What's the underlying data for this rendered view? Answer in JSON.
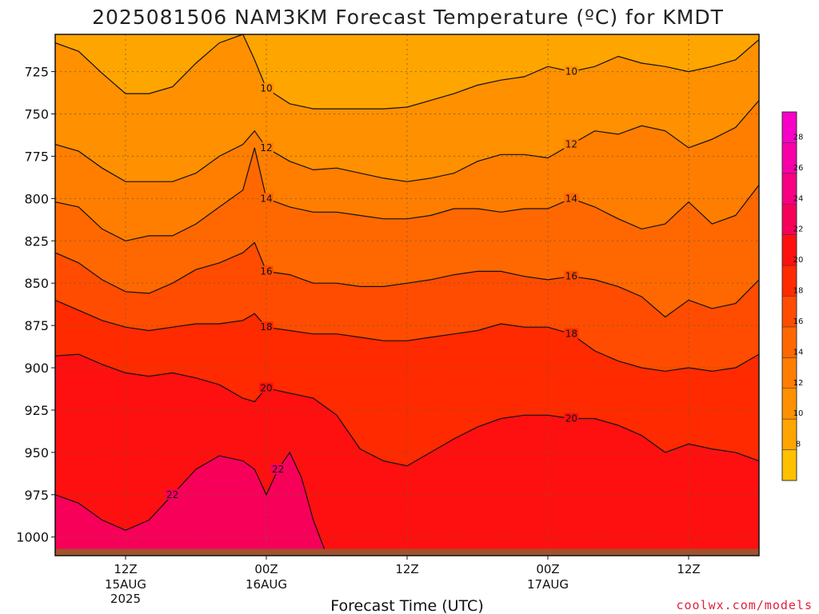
{
  "chart_data": {
    "type": "heatmap",
    "title": "2025081506 NAM3KM Forecast Temperature (ºC) for KMDT",
    "xlabel": "Forecast Time (UTC)",
    "ylabel": "",
    "credit": "coolwx.com/models",
    "y_axis": {
      "type": "pressure",
      "ticks": [
        725,
        750,
        775,
        800,
        825,
        850,
        875,
        900,
        925,
        950,
        975,
        1000
      ],
      "range": [
        1011,
        703
      ],
      "inverted": true
    },
    "x_axis": {
      "ticks": [
        {
          "hour": 6,
          "label": "12Z",
          "sublabels": [
            "15AUG",
            "2025"
          ]
        },
        {
          "hour": 18,
          "label": "00Z",
          "sublabels": [
            "16AUG"
          ]
        },
        {
          "hour": 30,
          "label": "12Z",
          "sublabels": []
        },
        {
          "hour": 42,
          "label": "00Z",
          "sublabels": [
            "17AUG"
          ]
        },
        {
          "hour": 54,
          "label": "12Z",
          "sublabels": []
        }
      ],
      "range_hours": [
        0,
        60
      ],
      "grid": true
    },
    "colorbar": {
      "labels": [
        8,
        10,
        12,
        14,
        16,
        18,
        20,
        22,
        24,
        26,
        28
      ],
      "bins": [
        {
          "min": 6,
          "max": 8,
          "color": "#ffc000"
        },
        {
          "min": 8,
          "max": 10,
          "color": "#ffa500"
        },
        {
          "min": 10,
          "max": 12,
          "color": "#ff9000"
        },
        {
          "min": 12,
          "max": 14,
          "color": "#ff7e00"
        },
        {
          "min": 14,
          "max": 16,
          "color": "#ff6800"
        },
        {
          "min": 16,
          "max": 18,
          "color": "#ff4c00"
        },
        {
          "min": 18,
          "max": 20,
          "color": "#ff2a00"
        },
        {
          "min": 20,
          "max": 22,
          "color": "#ff1010"
        },
        {
          "min": 22,
          "max": 24,
          "color": "#f7005a"
        },
        {
          "min": 24,
          "max": 26,
          "color": "#f70082"
        },
        {
          "min": 26,
          "max": 28,
          "color": "#f700a8"
        },
        {
          "min": 28,
          "max": 30,
          "color": "#f700c8"
        }
      ]
    },
    "contours": [
      {
        "level": 10,
        "label": "10",
        "pressure_by_hour": [
          [
            0,
            708
          ],
          [
            2,
            713
          ],
          [
            4,
            726
          ],
          [
            6,
            738
          ],
          [
            8,
            738
          ],
          [
            10,
            734
          ],
          [
            12,
            720
          ],
          [
            14,
            708
          ],
          [
            16,
            703
          ],
          [
            17,
            718
          ],
          [
            18,
            735
          ],
          [
            20,
            744
          ],
          [
            22,
            747
          ],
          [
            24,
            747
          ],
          [
            26,
            747
          ],
          [
            28,
            747
          ],
          [
            30,
            746
          ],
          [
            32,
            742
          ],
          [
            34,
            738
          ],
          [
            36,
            733
          ],
          [
            38,
            730
          ],
          [
            40,
            728
          ],
          [
            42,
            722
          ],
          [
            44,
            725
          ],
          [
            46,
            722
          ],
          [
            48,
            716
          ],
          [
            50,
            720
          ],
          [
            52,
            722
          ],
          [
            54,
            725
          ],
          [
            56,
            722
          ],
          [
            58,
            718
          ],
          [
            60,
            706
          ]
        ]
      },
      {
        "level": 12,
        "label": "12",
        "pressure_by_hour": [
          [
            0,
            768
          ],
          [
            2,
            772
          ],
          [
            4,
            782
          ],
          [
            6,
            790
          ],
          [
            8,
            790
          ],
          [
            10,
            790
          ],
          [
            12,
            785
          ],
          [
            14,
            775
          ],
          [
            16,
            768
          ],
          [
            17,
            760
          ],
          [
            18,
            770
          ],
          [
            20,
            778
          ],
          [
            22,
            783
          ],
          [
            24,
            782
          ],
          [
            26,
            785
          ],
          [
            28,
            788
          ],
          [
            30,
            790
          ],
          [
            32,
            788
          ],
          [
            34,
            785
          ],
          [
            36,
            778
          ],
          [
            38,
            774
          ],
          [
            40,
            774
          ],
          [
            42,
            776
          ],
          [
            44,
            768
          ],
          [
            46,
            760
          ],
          [
            48,
            762
          ],
          [
            50,
            757
          ],
          [
            52,
            760
          ],
          [
            54,
            770
          ],
          [
            56,
            765
          ],
          [
            58,
            758
          ],
          [
            60,
            742
          ]
        ]
      },
      {
        "level": 14,
        "label": "14",
        "pressure_by_hour": [
          [
            0,
            802
          ],
          [
            2,
            805
          ],
          [
            4,
            818
          ],
          [
            6,
            825
          ],
          [
            8,
            822
          ],
          [
            10,
            822
          ],
          [
            12,
            815
          ],
          [
            14,
            805
          ],
          [
            16,
            795
          ],
          [
            17,
            770
          ],
          [
            18,
            800
          ],
          [
            20,
            805
          ],
          [
            22,
            808
          ],
          [
            24,
            808
          ],
          [
            26,
            810
          ],
          [
            28,
            812
          ],
          [
            30,
            812
          ],
          [
            32,
            810
          ],
          [
            34,
            806
          ],
          [
            36,
            806
          ],
          [
            38,
            808
          ],
          [
            40,
            806
          ],
          [
            42,
            806
          ],
          [
            44,
            800
          ],
          [
            46,
            805
          ],
          [
            48,
            812
          ],
          [
            50,
            818
          ],
          [
            52,
            815
          ],
          [
            54,
            802
          ],
          [
            56,
            815
          ],
          [
            58,
            810
          ],
          [
            60,
            792
          ]
        ]
      },
      {
        "level": 16,
        "label": "16",
        "pressure_by_hour": [
          [
            0,
            832
          ],
          [
            2,
            838
          ],
          [
            4,
            848
          ],
          [
            6,
            855
          ],
          [
            8,
            856
          ],
          [
            10,
            850
          ],
          [
            12,
            842
          ],
          [
            14,
            838
          ],
          [
            16,
            832
          ],
          [
            17,
            826
          ],
          [
            18,
            843
          ],
          [
            20,
            845
          ],
          [
            22,
            850
          ],
          [
            24,
            850
          ],
          [
            26,
            852
          ],
          [
            28,
            852
          ],
          [
            30,
            850
          ],
          [
            32,
            848
          ],
          [
            34,
            845
          ],
          [
            36,
            843
          ],
          [
            38,
            843
          ],
          [
            40,
            846
          ],
          [
            42,
            848
          ],
          [
            44,
            846
          ],
          [
            46,
            848
          ],
          [
            48,
            852
          ],
          [
            50,
            858
          ],
          [
            52,
            870
          ],
          [
            54,
            860
          ],
          [
            56,
            865
          ],
          [
            58,
            862
          ],
          [
            60,
            848
          ]
        ]
      },
      {
        "level": 18,
        "label": "18",
        "pressure_by_hour": [
          [
            0,
            860
          ],
          [
            2,
            866
          ],
          [
            4,
            872
          ],
          [
            6,
            876
          ],
          [
            8,
            878
          ],
          [
            10,
            876
          ],
          [
            12,
            874
          ],
          [
            14,
            874
          ],
          [
            16,
            872
          ],
          [
            17,
            868
          ],
          [
            18,
            876
          ],
          [
            20,
            878
          ],
          [
            22,
            880
          ],
          [
            24,
            880
          ],
          [
            26,
            882
          ],
          [
            28,
            884
          ],
          [
            30,
            884
          ],
          [
            32,
            882
          ],
          [
            34,
            880
          ],
          [
            36,
            878
          ],
          [
            38,
            874
          ],
          [
            40,
            876
          ],
          [
            42,
            876
          ],
          [
            44,
            880
          ],
          [
            46,
            890
          ],
          [
            48,
            896
          ],
          [
            50,
            900
          ],
          [
            52,
            902
          ],
          [
            54,
            900
          ],
          [
            56,
            902
          ],
          [
            58,
            900
          ],
          [
            60,
            892
          ]
        ]
      },
      {
        "level": 20,
        "label": "20",
        "pressure_by_hour": [
          [
            0,
            893
          ],
          [
            2,
            892
          ],
          [
            4,
            898
          ],
          [
            6,
            903
          ],
          [
            8,
            905
          ],
          [
            10,
            903
          ],
          [
            12,
            906
          ],
          [
            14,
            910
          ],
          [
            16,
            918
          ],
          [
            17,
            920
          ],
          [
            18,
            912
          ],
          [
            20,
            915
          ],
          [
            22,
            918
          ],
          [
            24,
            928
          ],
          [
            26,
            948
          ],
          [
            28,
            955
          ],
          [
            30,
            958
          ],
          [
            32,
            950
          ],
          [
            34,
            942
          ],
          [
            36,
            935
          ],
          [
            38,
            930
          ],
          [
            40,
            928
          ],
          [
            42,
            928
          ],
          [
            44,
            930
          ],
          [
            46,
            930
          ],
          [
            48,
            934
          ],
          [
            50,
            940
          ],
          [
            52,
            950
          ],
          [
            54,
            945
          ],
          [
            56,
            948
          ],
          [
            58,
            950
          ],
          [
            60,
            955
          ]
        ]
      },
      {
        "level": 22,
        "label": "22",
        "pressure_by_hour": [
          [
            0,
            975
          ],
          [
            2,
            980
          ],
          [
            4,
            990
          ],
          [
            6,
            996
          ],
          [
            8,
            990
          ],
          [
            10,
            975
          ],
          [
            12,
            960
          ],
          [
            14,
            952
          ],
          [
            16,
            955
          ],
          [
            17,
            960
          ],
          [
            18,
            975
          ],
          [
            19,
            960
          ],
          [
            20,
            950
          ],
          [
            21,
            965
          ],
          [
            22,
            990
          ],
          [
            23,
            1008
          ]
        ]
      }
    ]
  }
}
